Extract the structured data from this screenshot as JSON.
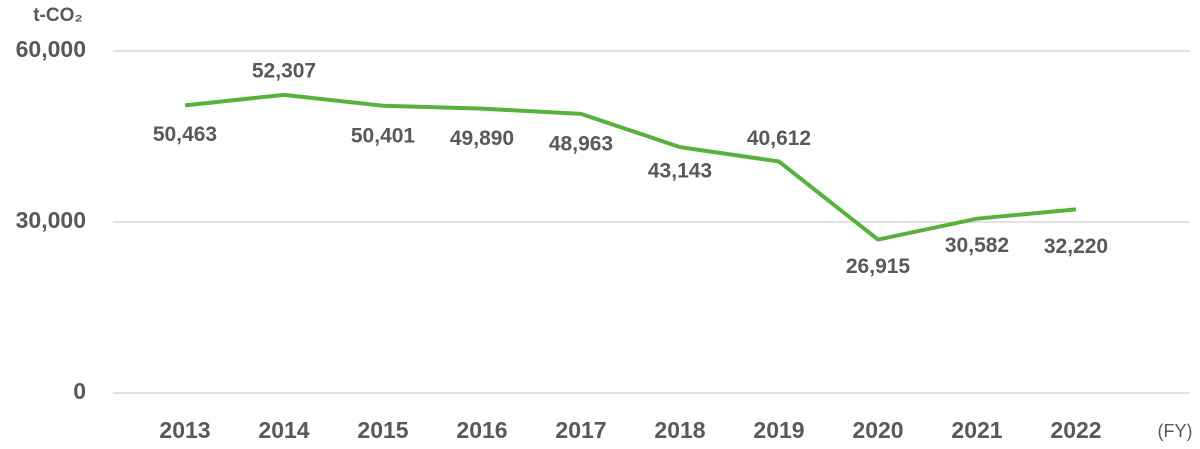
{
  "chart_data": {
    "type": "line",
    "y_unit": "t-CO₂",
    "x_unit": "(FY)",
    "categories": [
      "2013",
      "2014",
      "2015",
      "2016",
      "2017",
      "2018",
      "2019",
      "2020",
      "2021",
      "2022"
    ],
    "series": [
      {
        "color": "#57b23b",
        "values": [
          50463,
          52307,
          50401,
          49890,
          48963,
          43143,
          40612,
          26915,
          30582,
          32220
        ],
        "value_labels": [
          "50,463",
          "52,307",
          "50,401",
          "49,890",
          "48,963",
          "43,143",
          "40,612",
          "26,915",
          "30,582",
          "32,220"
        ]
      }
    ],
    "ylim": [
      0,
      60000
    ],
    "yticks": [
      0,
      {
        "value": 30000,
        "label": "30,000"
      },
      {
        "value": 60000,
        "label": "60,000"
      }
    ],
    "grid": true
  }
}
